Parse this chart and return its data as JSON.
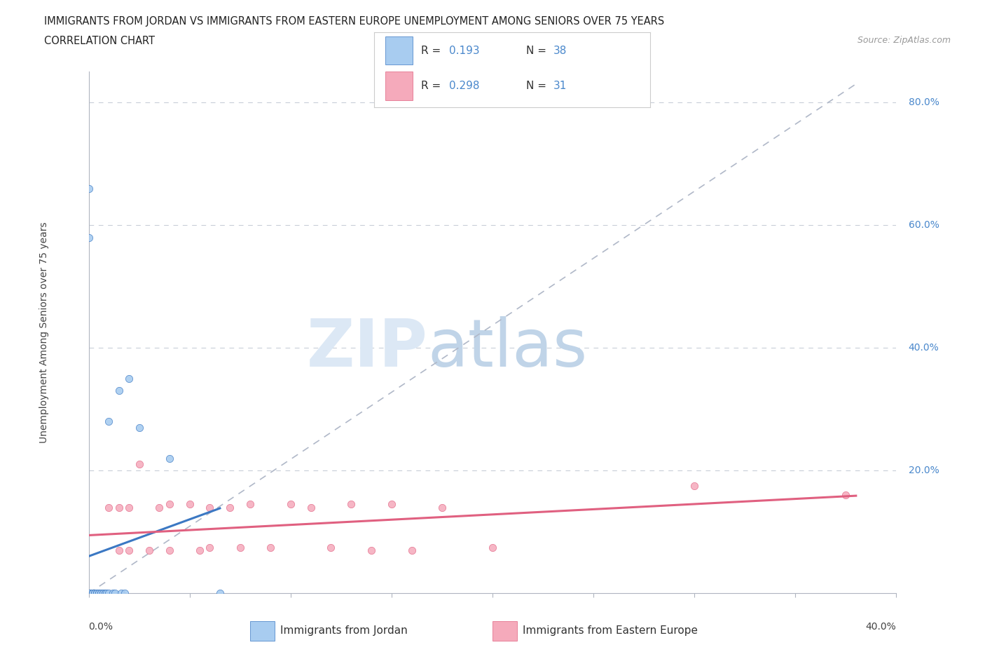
{
  "title_line1": "IMMIGRANTS FROM JORDAN VS IMMIGRANTS FROM EASTERN EUROPE UNEMPLOYMENT AMONG SENIORS OVER 75 YEARS",
  "title_line2": "CORRELATION CHART",
  "source": "Source: ZipAtlas.com",
  "ylabel": "Unemployment Among Seniors over 75 years",
  "legend_label1": "Immigrants from Jordan",
  "legend_label2": "Immigrants from Eastern Europe",
  "R1": 0.193,
  "N1": 38,
  "R2": 0.298,
  "N2": 31,
  "color_jordan": "#A8CCF0",
  "color_jordan_line": "#3B78C3",
  "color_ee": "#F5AABB",
  "color_ee_line": "#E06080",
  "xmin": 0.0,
  "xmax": 0.4,
  "ymin": 0.0,
  "ymax": 0.85,
  "jordan_x": [
    0.0,
    0.0,
    0.0,
    0.0,
    0.0,
    0.0,
    0.0,
    0.0,
    0.0,
    0.0,
    0.002,
    0.002,
    0.002,
    0.003,
    0.003,
    0.004,
    0.004,
    0.004,
    0.005,
    0.005,
    0.006,
    0.006,
    0.007,
    0.007,
    0.008,
    0.008,
    0.009,
    0.01,
    0.01,
    0.012,
    0.013,
    0.015,
    0.016,
    0.018,
    0.02,
    0.025,
    0.04,
    0.065
  ],
  "jordan_y": [
    0.0,
    0.0,
    0.0,
    0.0,
    0.0,
    0.0,
    0.0,
    0.0,
    0.66,
    0.58,
    0.0,
    0.0,
    0.0,
    0.0,
    0.0,
    0.0,
    0.0,
    0.0,
    0.0,
    0.0,
    0.0,
    0.0,
    0.0,
    0.0,
    0.0,
    0.0,
    0.0,
    0.28,
    0.0,
    0.0,
    0.0,
    0.33,
    0.0,
    0.0,
    0.35,
    0.27,
    0.22,
    0.0
  ],
  "ee_x": [
    0.0,
    0.005,
    0.01,
    0.015,
    0.015,
    0.02,
    0.02,
    0.025,
    0.03,
    0.035,
    0.04,
    0.04,
    0.05,
    0.055,
    0.06,
    0.06,
    0.07,
    0.075,
    0.08,
    0.09,
    0.1,
    0.11,
    0.12,
    0.13,
    0.14,
    0.15,
    0.16,
    0.175,
    0.2,
    0.3,
    0.375
  ],
  "ee_y": [
    0.0,
    0.0,
    0.14,
    0.07,
    0.14,
    0.07,
    0.14,
    0.21,
    0.07,
    0.14,
    0.07,
    0.145,
    0.145,
    0.07,
    0.075,
    0.14,
    0.14,
    0.075,
    0.145,
    0.075,
    0.145,
    0.14,
    0.075,
    0.145,
    0.07,
    0.145,
    0.07,
    0.14,
    0.075,
    0.175,
    0.16
  ]
}
